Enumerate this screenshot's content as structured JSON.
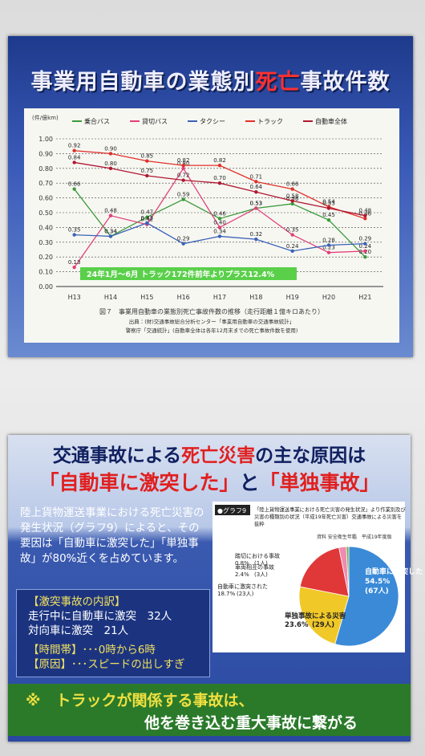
{
  "poster1": {
    "title_parts": [
      "事業用自動車の業態別",
      "死亡",
      "事故件数"
    ]
  },
  "chart_data": [
    {
      "type": "line",
      "y_unit": "(件/億km)",
      "categories": [
        "H13",
        "H14",
        "H15",
        "H16",
        "H17",
        "H18",
        "H19",
        "H20",
        "H21"
      ],
      "ylim": [
        0,
        1
      ],
      "yticks": [
        {
          "value": 0,
          "label": "0.00"
        },
        {
          "value": 0.1,
          "label": "0.10"
        },
        {
          "value": 0.2,
          "label": "0.20"
        },
        {
          "value": 0.3,
          "label": "0.30"
        },
        {
          "value": 0.4,
          "label": "0.40"
        },
        {
          "value": 0.5,
          "label": "0.50"
        },
        {
          "value": 0.6,
          "label": "0.60"
        },
        {
          "value": 0.7,
          "label": "0.70"
        },
        {
          "value": 0.8,
          "label": "0.80"
        },
        {
          "value": 0.9,
          "label": "0.90"
        },
        {
          "value": 1,
          "label": "1.00"
        }
      ],
      "grid": true,
      "series": [
        {
          "name": "乗合バス",
          "color": "#3a9a3a",
          "values": [
            0.66,
            0.34,
            0.47,
            0.59,
            0.46,
            0.53,
            0.56,
            0.45,
            0.2
          ],
          "value_labels": [
            "0.66",
            "0.34",
            "0.47",
            "0.59",
            "0.46",
            "0.53",
            "0.56",
            "0.45",
            "0.20"
          ]
        },
        {
          "name": "貸切バス",
          "color": "#e0407a",
          "values": [
            0.13,
            0.48,
            0.42,
            0.8,
            0.4,
            0.53,
            0.35,
            0.23,
            0.24
          ],
          "value_labels": [
            "0.13",
            "0.48",
            "0.42",
            "0.80",
            "0.40",
            "0.53",
            "0.35",
            "0.23",
            "0.24"
          ]
        },
        {
          "name": "タクシー",
          "color": "#3a62b8",
          "values": [
            0.35,
            0.34,
            0.43,
            0.29,
            0.34,
            0.32,
            0.24,
            0.28,
            0.29
          ],
          "value_labels": [
            "0.35",
            "0.34",
            "0.43",
            "0.29",
            "0.34",
            "0.32",
            "0.24",
            "0.28",
            "0.29"
          ]
        },
        {
          "name": "トラック",
          "color": "#e0302a",
          "values": [
            0.92,
            0.9,
            0.85,
            0.82,
            0.82,
            0.71,
            0.66,
            0.54,
            0.46
          ],
          "value_labels": [
            "0.92",
            "0.90",
            "0.85",
            "0.82",
            "0.82",
            "0.71",
            "0.66",
            "0.54",
            "0.46"
          ]
        },
        {
          "name": "自動車全体",
          "color": "#b01830",
          "values": [
            0.84,
            0.8,
            0.75,
            0.72,
            0.7,
            0.64,
            0.58,
            0.53,
            0.48
          ],
          "value_labels": [
            "0.84",
            "0.80",
            "0.75",
            "0.72",
            "0.70",
            "0.64",
            "0.58",
            "0.53",
            "0.48"
          ]
        }
      ],
      "annotation": "24年1月～6月 トラック172件前年よりプラス12.4%",
      "caption": "図７　事業用自動車の業態別死亡事故件数の推移（走行距離１億キロあたり）",
      "sources": [
        "出典：(財)交通事故総合分析センター「事業用自動車の交通事故統計」",
        "警察庁「交通統計」(自動車全体は各年12月末までの死亡事故件数を使用)"
      ]
    },
    {
      "type": "pie",
      "badge": "●グラフ9",
      "title": "「陸上貨物運送事業における死亡災害の発生状況」より作業別及び災害の種類別の状況（平成19年死亡災害）交通事故による災害を抜粋",
      "source": "資料 安全衛生年鑑　平成19年度版",
      "categories": [
        "自動車に激突した",
        "単独事故による災害",
        "自動車に激突された",
        "車両相互の事故",
        "踏切における事故"
      ],
      "values": [
        54.5,
        23.6,
        18.7,
        2.4,
        0.8
      ],
      "value_labels": [
        "54.5%",
        "23.6%",
        "18.7%",
        "2.4%",
        "0.8%"
      ],
      "counts": [
        67,
        29,
        23,
        3,
        1
      ],
      "count_labels": [
        "(67人)",
        "(29人)",
        "(23人)",
        "(3人)",
        "(1人)"
      ],
      "colors": [
        "#3a8ad8",
        "#f0c828",
        "#e03838",
        "#f08ab0",
        "#6ab04a"
      ]
    }
  ],
  "poster2": {
    "headline_parts": [
      "交通事故による",
      "死亡災害",
      "の主な原因は"
    ],
    "subhead_parts": [
      "「自動車に激突した」",
      "と",
      "「単独事故」"
    ],
    "body": "陸上貨物運送事業における死亡災害の発生状況（グラフ9）によると、その要因は「自動車に激突した」「単独事故」が80%近くを占めています。",
    "breakdown_title": "【激突事故の内訳】",
    "breakdown": [
      "走行中に自動車に激突　32人",
      "対向車に激突　21人"
    ],
    "details": [
      "【時間帯】･･･0時から6時",
      "【原因】･･･スピードの出しすぎ"
    ],
    "footer": [
      "※　トラックが関係する事故は、",
      "他を巻き込む重大事故に繋がる"
    ]
  }
}
